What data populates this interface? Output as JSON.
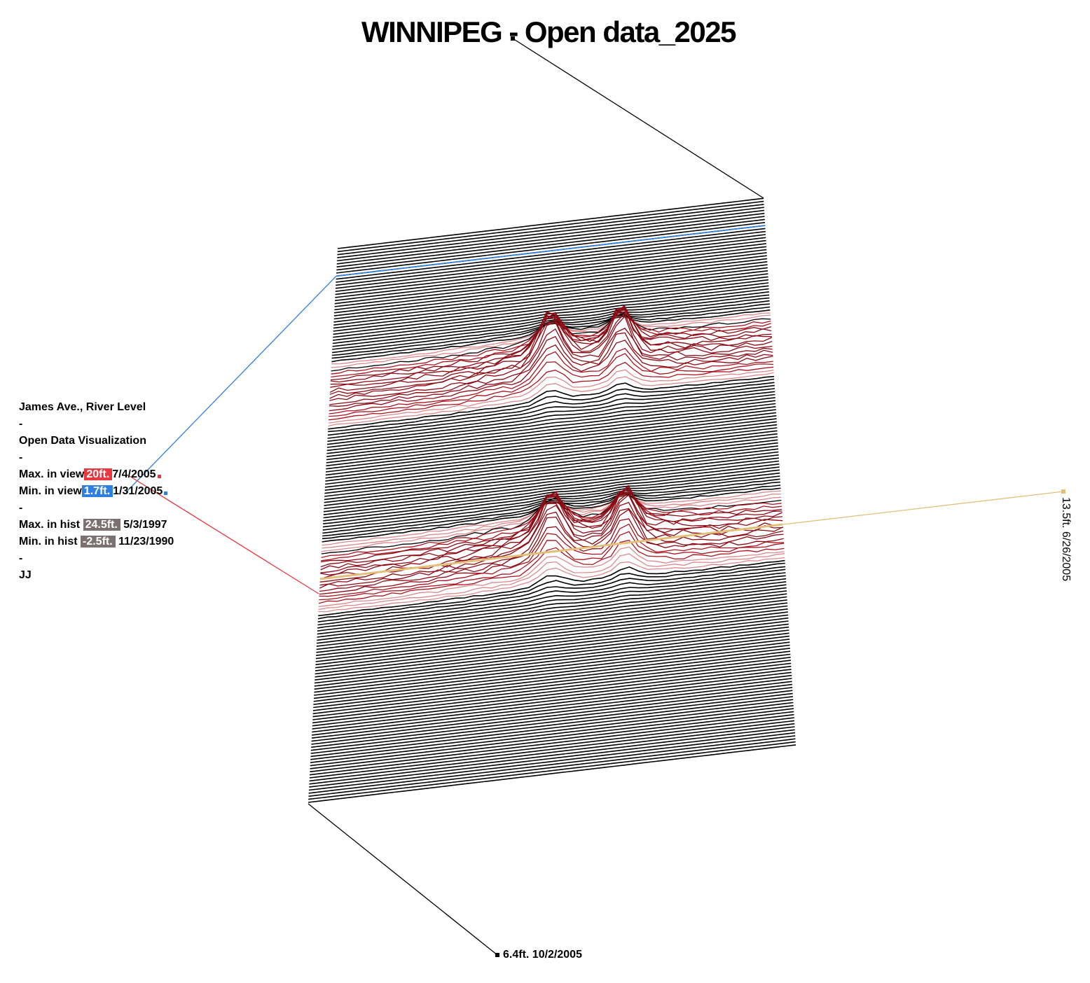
{
  "title": {
    "left": "WINNIPEG",
    "sep": "-",
    "right": "Open data_2025"
  },
  "legend": {
    "station": "James Ave., River Level",
    "dash1": "-",
    "subtitle": "Open Data Visualization",
    "dash2": "-",
    "max_view_label": "Max. in view",
    "max_view_value": "20ft.",
    "max_view_date": "7/4/2005",
    "min_view_label": "Min. in view",
    "min_view_value": "1.7ft.",
    "min_view_date": "1/31/2005",
    "dash3": "-",
    "max_hist_label": "Max. in hist",
    "max_hist_value": "24.5ft.",
    "max_hist_date": "5/3/1997",
    "min_hist_label": "Min. in hist",
    "min_hist_value": "-2.5ft.",
    "min_hist_date": "11/23/1990",
    "dash4": "-",
    "author": "JJ"
  },
  "colors": {
    "max": "#e8373f",
    "min": "#2f7fe0",
    "hist": "#7b7170",
    "highlight": "#e2c07a",
    "line": "#000000"
  },
  "bottom_callout": "6.4ft. 10/2/2005",
  "right_callout": "13.5ft. 6/26/2005",
  "chart_data": {
    "type": "line",
    "description_units": "ft",
    "rows_visible": 182,
    "points_per_row": 52,
    "max_in_view": 20,
    "min_in_view": 1.7,
    "max_in_hist": 24.5,
    "min_in_hist": -2.5,
    "bands": [
      {
        "peak_ft": 20,
        "date": "7/4/2005"
      },
      {
        "peak_ft": 13.5,
        "date": "6/26/2005"
      }
    ]
  }
}
